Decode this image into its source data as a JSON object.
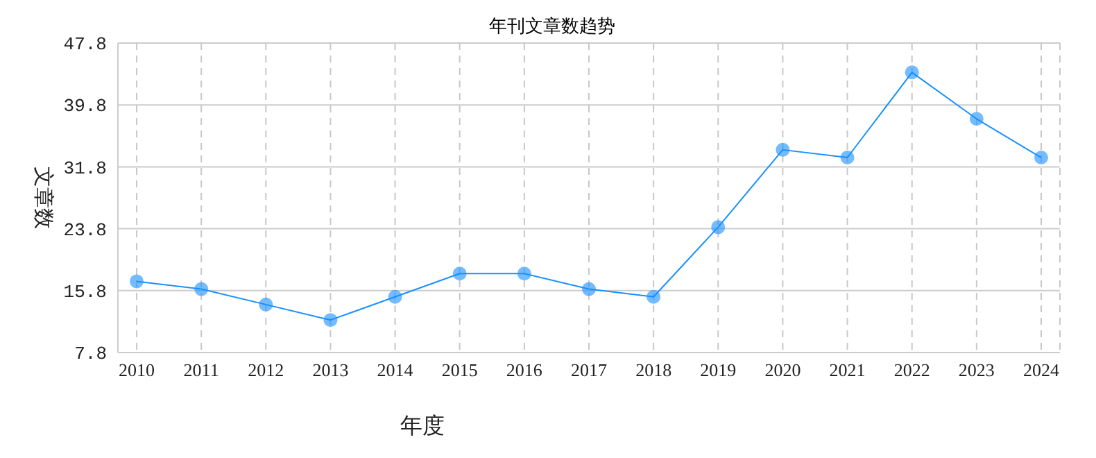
{
  "chart_data": {
    "type": "line",
    "title": "年刊文章数趋势",
    "xlabel": "年度",
    "ylabel": "文章数",
    "categories": [
      "2010",
      "2011",
      "2012",
      "2013",
      "2014",
      "2015",
      "2016",
      "2017",
      "2018",
      "2019",
      "2020",
      "2021",
      "2022",
      "2023",
      "2024"
    ],
    "series": [
      {
        "color": "#1890ff",
        "values": [
          17,
          16,
          14,
          12,
          15,
          18,
          18,
          16,
          15,
          24,
          34,
          33,
          44,
          38,
          33
        ]
      }
    ],
    "ylim": [
      7.8,
      47.8
    ],
    "yticks": [
      7.8,
      15.8,
      23.8,
      31.8,
      39.8,
      47.8
    ],
    "grid": true,
    "legend": false,
    "marker": "circle",
    "line_style": "solid"
  }
}
